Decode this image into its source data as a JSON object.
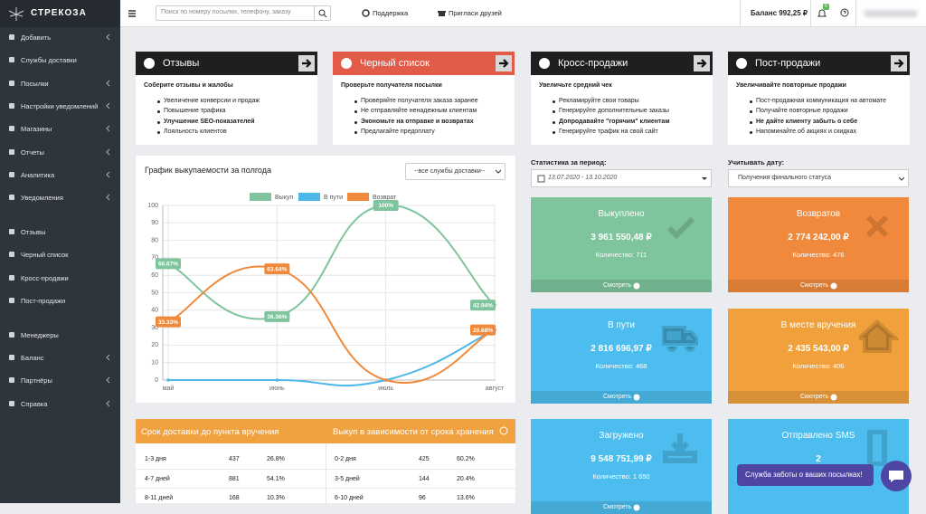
{
  "sidebar": {
    "logo": "СТРЕКОЗА",
    "groups": [
      [
        {
          "label": "Добавить",
          "has_children": true
        },
        {
          "label": "Службы доставки",
          "has_children": false
        },
        {
          "label": "Посылки",
          "has_children": true
        },
        {
          "label": "Настройки уведомлений",
          "has_children": true
        },
        {
          "label": "Магазины",
          "has_children": true
        },
        {
          "label": "Отчеты",
          "has_children": true
        },
        {
          "label": "Аналитика",
          "has_children": true
        },
        {
          "label": "Уведомления",
          "has_children": true
        }
      ],
      [
        {
          "label": "Отзывы",
          "has_children": false
        },
        {
          "label": "Черный список",
          "has_children": false
        },
        {
          "label": "Кросс-продажи",
          "has_children": false
        },
        {
          "label": "Пост-продажи",
          "has_children": false
        }
      ],
      [
        {
          "label": "Менеджеры",
          "has_children": false
        },
        {
          "label": "Баланс",
          "has_children": true
        },
        {
          "label": "Партнёры",
          "has_children": true
        },
        {
          "label": "Справка",
          "has_children": true
        }
      ]
    ]
  },
  "topbar": {
    "search_placeholder": "Поиск по номеру посылки, телефону, заказу",
    "support": "Поддержка",
    "invite": "Пригласи друзей",
    "balance": "Баланс 992,25 ₽",
    "notifications_badge": 6
  },
  "promo_cards": [
    {
      "title": "Отзывы",
      "color": "#1f1f1f",
      "subtitle": "Соберите отзывы и жалобы",
      "items": [
        {
          "text": "Увеличение конверсии и продаж",
          "bold": false
        },
        {
          "text": "Повышение трафика",
          "bold": false
        },
        {
          "text": "Улучшение SEO-показателей",
          "bold": true
        },
        {
          "text": "Лояльность клиентов",
          "bold": false
        }
      ]
    },
    {
      "title": "Черный список",
      "color": "#e15b48",
      "subtitle": "Проверьте получателя посылки",
      "items": [
        {
          "text": "Проверяйте получателя заказа заранее",
          "bold": false
        },
        {
          "text": "Не отправляйте ненадежным клиентам",
          "bold": false
        },
        {
          "text": "Экономьте на отправке и возвратах",
          "bold": true
        },
        {
          "text": "Предлагайте предоплату",
          "bold": false
        }
      ]
    },
    {
      "title": "Кросс-продажи",
      "color": "#1f1f1f",
      "subtitle": "Увеличьте средний чек",
      "items": [
        {
          "text": "Рекламируйте свои товары",
          "bold": false
        },
        {
          "text": "Генерируйте дополнительные заказы",
          "bold": false
        },
        {
          "text": "Допродавайте \"горячим\" клиентам",
          "bold": true
        },
        {
          "text": "Генерируйте трафик на свой сайт",
          "bold": false
        }
      ]
    },
    {
      "title": "Пост-продажи",
      "color": "#1f1f1f",
      "subtitle": "Увеличивайте повторные продажи",
      "items": [
        {
          "text": "Пост-продажная коммуникация на автомате",
          "bold": false
        },
        {
          "text": "Получайте повторные продажи",
          "bold": false
        },
        {
          "text": "Не дайте клиенту забыть о себе",
          "bold": true
        },
        {
          "text": "Напоминайте об акциях и скидках",
          "bold": false
        }
      ]
    }
  ],
  "chart_panel": {
    "filter": "--все службы доставки--"
  },
  "chart_data": {
    "type": "line",
    "title": "График выкупаемости за полгода",
    "categories": [
      "май",
      "июнь",
      "июль",
      "август"
    ],
    "series": [
      {
        "name": "Выкуп",
        "color": "#7ec49c",
        "values": [
          66.67,
          36.36,
          100,
          42.94
        ],
        "value_labels": [
          "66.67%",
          "36.36%",
          "100%",
          "42.94%"
        ]
      },
      {
        "name": "В пути",
        "color": "#4db8e8",
        "values": [
          0,
          0,
          0,
          28.68
        ]
      },
      {
        "name": "Возврат",
        "color": "#ef8a3c",
        "values": [
          33.33,
          63.64,
          0,
          28.68
        ],
        "value_labels": [
          "33.33%",
          "63.64%",
          null,
          "28.68%"
        ]
      }
    ],
    "ylim": [
      0,
      100
    ],
    "yticks": [
      0,
      10,
      20,
      30,
      40,
      50,
      60,
      70,
      80,
      90,
      100
    ],
    "grid": true,
    "legend": "top"
  },
  "tables": [
    {
      "title": "Срок доставки до пункта вручения",
      "rows": [
        [
          "1-3 дня",
          "437",
          "26.8%"
        ],
        [
          "4-7 дней",
          "881",
          "54.1%"
        ],
        [
          "8-11 дней",
          "168",
          "10.3%"
        ]
      ]
    },
    {
      "title": "Выкуп в зависимости от срока хранения",
      "rows": [
        [
          "0-2 дня",
          "425",
          "60.2%"
        ],
        [
          "3-5 дней",
          "144",
          "20.4%"
        ],
        [
          "6-10 дней",
          "96",
          "13.6%"
        ]
      ]
    }
  ],
  "stats": {
    "period_label": "Статистика за период:",
    "period": "13.07.2020 - 13.10.2020",
    "date_label": "Учитывать дату:",
    "date_option": "Получения финального статуса",
    "tiles": [
      {
        "title": "Выкуплено",
        "amount": "3 961 550,48 ₽",
        "count": "Количество: 711",
        "link": "Смотреть",
        "color": "#7ec49c"
      },
      {
        "title": "Возвратов",
        "amount": "2 774 242,00 ₽",
        "count": "Количество: 476",
        "link": "Смотреть",
        "color": "#f0893b"
      },
      {
        "title": "В пути",
        "amount": "2 816 696,97 ₽",
        "count": "Количество: 468",
        "link": "Смотреть",
        "color": "#4cbdee"
      },
      {
        "title": "В месте вручения",
        "amount": "2 435 543,00 ₽",
        "count": "Количество: 406",
        "link": "Смотреть",
        "color": "#f0a13c"
      },
      {
        "title": "Загружено",
        "amount": "9 548 751,99 ₽",
        "count": "Количество: 1 650",
        "link": "Смотреть",
        "color": "#4cbdee"
      },
      {
        "title": "Отправлено SMS",
        "amount": "2",
        "color": "#4cbdee"
      }
    ]
  },
  "chat": {
    "message": "Служба заботы о ваших посылках!"
  }
}
